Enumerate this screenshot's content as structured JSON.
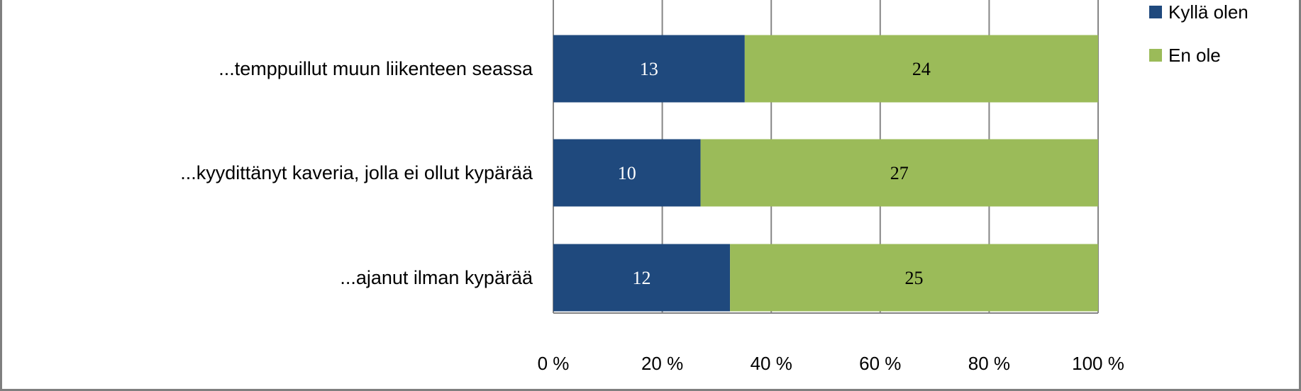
{
  "chart_data": {
    "type": "bar",
    "orientation": "horizontal",
    "stacked": "percent",
    "categories": [
      "...temppuillut muun liikenteen seassa",
      "...kyydittänyt kaveria, jolla ei ollut kypärää",
      "...ajanut ilman kypärää"
    ],
    "series": [
      {
        "name": "Kyllä olen",
        "values": [
          13,
          10,
          12
        ],
        "color": "#1f497d"
      },
      {
        "name": "En ole",
        "values": [
          24,
          27,
          25
        ],
        "color": "#9bbb59"
      }
    ],
    "x_ticks": [
      "0 %",
      "20 %",
      "40 %",
      "60 %",
      "80 %",
      "100 %"
    ],
    "xlim": [
      0,
      100
    ],
    "grid": true,
    "legend_position": "top-right",
    "data_labels": true
  }
}
